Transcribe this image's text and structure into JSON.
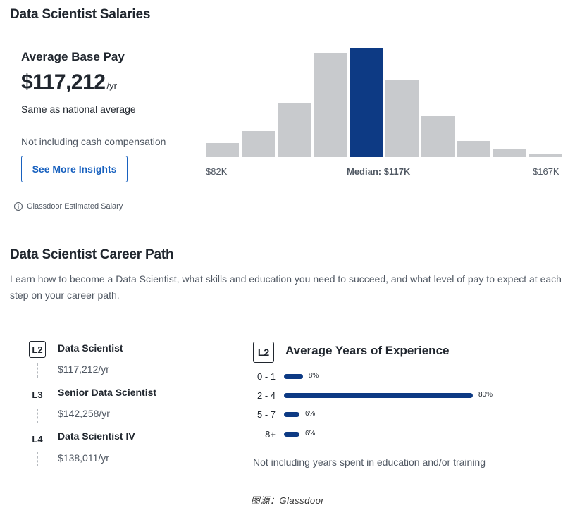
{
  "salaries": {
    "title": "Data Scientist Salaries",
    "avg_label": "Average Base Pay",
    "amount": "$117,212",
    "per": "/yr",
    "comparison": "Same as national average",
    "note": "Not including cash compensation",
    "insights_button": "See More Insights",
    "estimated": "Glassdoor Estimated Salary",
    "histogram": {
      "heights": [
        20,
        37,
        77,
        148,
        155,
        109,
        59,
        23,
        11,
        4
      ],
      "median_index": 4,
      "min_label": "$82K",
      "median_label": "Median: $117K",
      "max_label": "$167K",
      "bar_color": "#c8cacd",
      "median_color": "#0d3a84"
    }
  },
  "career": {
    "title": "Data Scientist Career Path",
    "description": "Learn how to become a Data Scientist, what skills and education you need to succeed, and what level of pay to expect at each step on your career path.",
    "levels": [
      {
        "level": "L2",
        "title": "Data Scientist",
        "pay": "$117,212/yr"
      },
      {
        "level": "L3",
        "title": "Senior Data Scientist",
        "pay": "$142,258/yr"
      },
      {
        "level": "L4",
        "title": "Data Scientist IV",
        "pay": "$138,011/yr"
      }
    ],
    "experience": {
      "level": "L2",
      "title": "Average Years of Experience",
      "rows": [
        {
          "range": "0 - 1",
          "pct": 8,
          "pct_label": "8%"
        },
        {
          "range": "2 - 4",
          "pct": 80,
          "pct_label": "80%"
        },
        {
          "range": "5 - 7",
          "pct": 6,
          "pct_label": "6%"
        },
        {
          "range": "8+",
          "pct": 6,
          "pct_label": "6%"
        }
      ],
      "note": "Not including years spent in education and/or training"
    }
  },
  "caption": "图源：Glassdoor",
  "colors": {
    "accent": "#1861bf",
    "navy": "#0d3a84",
    "bar_gray": "#c8cacd"
  }
}
